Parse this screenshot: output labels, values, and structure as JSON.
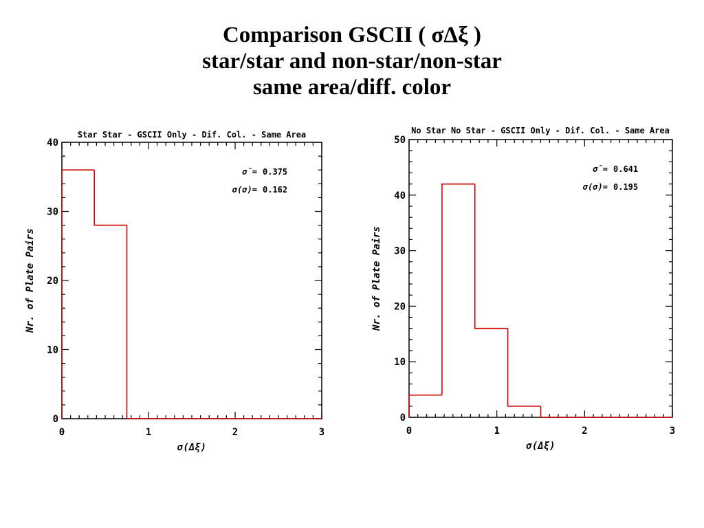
{
  "slide": {
    "title_lines": [
      "Comparison GSCII ( σΔξ )",
      "star/star and non-star/non-star",
      "same area/diff. color"
    ]
  },
  "chart_data": [
    {
      "type": "histogram",
      "title": "Star Star - GSCII Only - Dif. Col. - Same Area",
      "xlabel": "σ(Δξ)",
      "ylabel": "Nr. of Plate Pairs",
      "xlim": [
        0,
        3
      ],
      "ylim": [
        0,
        40
      ],
      "xticks": [
        0,
        1,
        2,
        3
      ],
      "yticks": [
        0,
        10,
        20,
        30,
        40
      ],
      "bin_edges": [
        0,
        0.375,
        0.75,
        1.125,
        1.5,
        1.875,
        2.25,
        2.625,
        3.0
      ],
      "counts": [
        36,
        28,
        0,
        0,
        0,
        0,
        0,
        0
      ],
      "color": "#cc0000",
      "stats": [
        {
          "label": "σ̄=",
          "value": "0.375"
        },
        {
          "label": "σ(σ)=",
          "value": "0.162"
        }
      ],
      "grid": false
    },
    {
      "type": "histogram",
      "title": "No Star No Star - GSCII Only - Dif. Col. - Same Area",
      "xlabel": "σ(Δξ)",
      "ylabel": "Nr. of Plate Pairs",
      "xlim": [
        0,
        3
      ],
      "ylim": [
        0,
        50
      ],
      "xticks": [
        0,
        1,
        2,
        3
      ],
      "yticks": [
        0,
        10,
        20,
        30,
        40,
        50
      ],
      "bin_edges": [
        0,
        0.375,
        0.75,
        1.125,
        1.5,
        1.875,
        2.25,
        2.625,
        3.0
      ],
      "counts": [
        4,
        42,
        16,
        2,
        0,
        0,
        0,
        0
      ],
      "color": "#cc0000",
      "stats": [
        {
          "label": "σ̄=",
          "value": "0.641"
        },
        {
          "label": "σ(σ)=",
          "value": "0.195"
        }
      ],
      "grid": false
    }
  ]
}
